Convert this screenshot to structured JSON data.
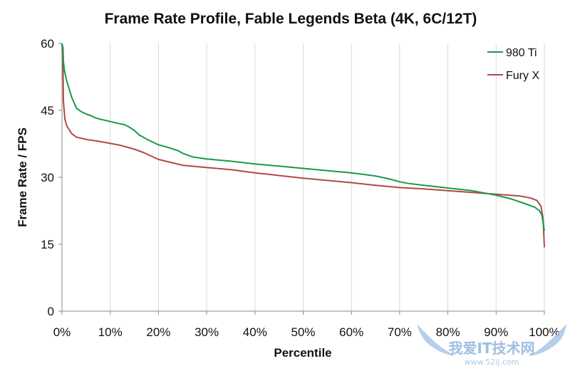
{
  "chart_data": {
    "type": "line",
    "title": "Frame Rate Profile, Fable Legends Beta (4K, 6C/12T)",
    "xlabel": "Percentile",
    "ylabel": "Frame Rate / FPS",
    "xlim": [
      0,
      100
    ],
    "ylim": [
      0,
      60
    ],
    "x_ticks": [
      0,
      10,
      20,
      30,
      40,
      50,
      60,
      70,
      80,
      90,
      100
    ],
    "x_tick_labels": [
      "0%",
      "10%",
      "20%",
      "30%",
      "40%",
      "50%",
      "60%",
      "70%",
      "80%",
      "90%",
      "100%"
    ],
    "y_ticks": [
      0,
      15,
      30,
      45,
      60
    ],
    "y_tick_labels": [
      "0",
      "15",
      "30",
      "45",
      "60"
    ],
    "grid": {
      "vertical": true,
      "horizontal": false
    },
    "legend": {
      "placement": "top-right"
    },
    "series": [
      {
        "name": "980 Ti",
        "color": "#1a9a4a",
        "points": [
          [
            0,
            60
          ],
          [
            0.2,
            59
          ],
          [
            0.3,
            56
          ],
          [
            0.5,
            54
          ],
          [
            1,
            51.5
          ],
          [
            2,
            48
          ],
          [
            3,
            45.5
          ],
          [
            4,
            44.7
          ],
          [
            5,
            44.2
          ],
          [
            6,
            43.8
          ],
          [
            7,
            43.3
          ],
          [
            8,
            43
          ],
          [
            10,
            42.5
          ],
          [
            12,
            42
          ],
          [
            13,
            41.8
          ],
          [
            14,
            41.2
          ],
          [
            15,
            40.5
          ],
          [
            16,
            39.5
          ],
          [
            18,
            38.3
          ],
          [
            20,
            37.3
          ],
          [
            22,
            36.7
          ],
          [
            24,
            36
          ],
          [
            25,
            35.4
          ],
          [
            27,
            34.6
          ],
          [
            30,
            34.1
          ],
          [
            35,
            33.6
          ],
          [
            40,
            33
          ],
          [
            45,
            32.5
          ],
          [
            50,
            32
          ],
          [
            55,
            31.5
          ],
          [
            60,
            31
          ],
          [
            65,
            30.3
          ],
          [
            68,
            29.6
          ],
          [
            70,
            29
          ],
          [
            72,
            28.6
          ],
          [
            75,
            28.2
          ],
          [
            80,
            27.6
          ],
          [
            85,
            27
          ],
          [
            90,
            26
          ],
          [
            93,
            25.2
          ],
          [
            96,
            24.1
          ],
          [
            98,
            23.3
          ],
          [
            99,
            22.5
          ],
          [
            99.5,
            21.5
          ],
          [
            100,
            18
          ]
        ]
      },
      {
        "name": "Fury X",
        "color": "#b04a46",
        "points": [
          [
            0,
            60
          ],
          [
            0.2,
            55
          ],
          [
            0.3,
            47
          ],
          [
            0.6,
            43
          ],
          [
            1,
            41.5
          ],
          [
            2,
            39.8
          ],
          [
            3,
            39
          ],
          [
            5,
            38.5
          ],
          [
            8,
            38
          ],
          [
            10,
            37.6
          ],
          [
            12,
            37.2
          ],
          [
            15,
            36.3
          ],
          [
            17,
            35.5
          ],
          [
            20,
            34
          ],
          [
            22,
            33.5
          ],
          [
            25,
            32.7
          ],
          [
            30,
            32.2
          ],
          [
            35,
            31.7
          ],
          [
            40,
            31
          ],
          [
            45,
            30.4
          ],
          [
            50,
            29.8
          ],
          [
            55,
            29.3
          ],
          [
            60,
            28.8
          ],
          [
            65,
            28.2
          ],
          [
            70,
            27.7
          ],
          [
            75,
            27.4
          ],
          [
            80,
            27
          ],
          [
            85,
            26.6
          ],
          [
            90,
            26.2
          ],
          [
            95,
            25.8
          ],
          [
            97,
            25.4
          ],
          [
            98.5,
            24.8
          ],
          [
            99.3,
            23.5
          ],
          [
            99.7,
            21
          ],
          [
            99.9,
            17
          ],
          [
            100,
            14.3
          ]
        ]
      }
    ]
  },
  "watermark": {
    "text": "我爱IT技术网",
    "url_text": "www.52ij.com"
  }
}
